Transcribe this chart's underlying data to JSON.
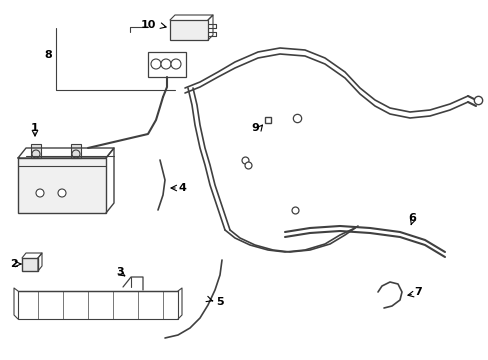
{
  "bg_color": "#ffffff",
  "line_color": "#404040",
  "text_color": "#000000",
  "fig_width": 4.89,
  "fig_height": 3.6,
  "dpi": 100
}
